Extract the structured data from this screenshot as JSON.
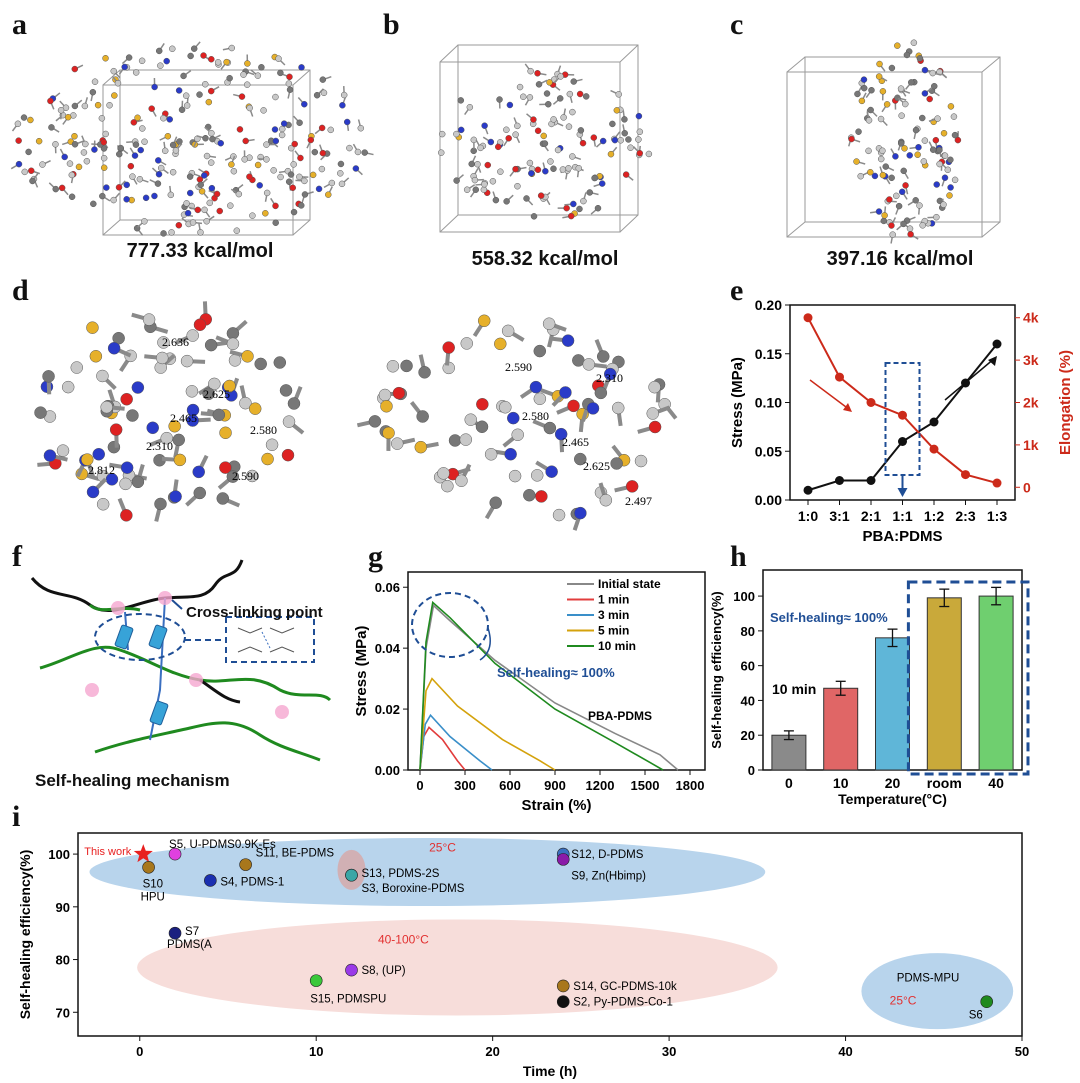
{
  "panel_letters": [
    "a",
    "b",
    "c",
    "d",
    "e",
    "f",
    "g",
    "h",
    "i"
  ],
  "a": {
    "energy": "777.33 kcal/mol"
  },
  "b": {
    "energy": "558.32 kcal/mol"
  },
  "c": {
    "energy": "397.16 kcal/mol"
  },
  "d": {
    "left_labels": [
      "2.636",
      "2.625",
      "2.465",
      "2.580",
      "2.310",
      "2.812",
      "2.590"
    ],
    "right_labels": [
      "2.590",
      "2.310",
      "2.580",
      "2.465",
      "2.625",
      "2.497"
    ]
  },
  "f": {
    "cross_linking": "Cross-linking point",
    "mechanism": "Self-healing mechanism"
  },
  "colors": {
    "black_series": "#111111",
    "red_series": "#cc2a1a",
    "blue_annot": "#1f4e95",
    "chain_green": "#1f8a1f",
    "ellipse_blue": "#8db8dc",
    "ellipse_pink": "#f3c6c2"
  },
  "chart_data": [
    {
      "panel": "e",
      "type": "line",
      "categories": [
        "1:0",
        "3:1",
        "2:1",
        "1:1",
        "1:2",
        "2:3",
        "1:3"
      ],
      "xlabel": "PBA:PDMS",
      "ylabel": "Stress (MPa)",
      "ylabel_right": "Elongation (%)",
      "ylim": [
        0,
        0.2
      ],
      "yticks": [
        "0.00",
        "0.05",
        "0.10",
        "0.15",
        "0.20"
      ],
      "ylim_right": [
        -300,
        4300
      ],
      "yticks_right": [
        "0",
        "1k",
        "2k",
        "3k",
        "4k"
      ],
      "series": [
        {
          "values": [
            0.01,
            0.02,
            0.02,
            0.06,
            0.08,
            0.12,
            0.16
          ],
          "axis": "left",
          "color": "#111111"
        },
        {
          "values": [
            4000,
            2600,
            2000,
            1700,
            900,
            300,
            100
          ],
          "axis": "right",
          "color": "#cc2a1a"
        }
      ]
    },
    {
      "panel": "g",
      "type": "line",
      "xlabel": "Strain (%)",
      "ylabel": "Stress (MPa)",
      "xlim": [
        -80,
        1900
      ],
      "ylim": [
        0,
        0.065
      ],
      "xticks": [
        0,
        300,
        600,
        900,
        1200,
        1500,
        1800
      ],
      "yticks": [
        "0.00",
        "0.02",
        "0.04",
        "0.06"
      ],
      "annotation": "Self-healing≈ 100%",
      "sample": "PBA-PDMS",
      "series": [
        {
          "name": "Initial state",
          "color": "#888888",
          "points": [
            [
              0,
              0
            ],
            [
              40,
              0.04
            ],
            [
              90,
              0.054
            ],
            [
              200,
              0.049
            ],
            [
              500,
              0.036
            ],
            [
              900,
              0.022
            ],
            [
              1300,
              0.012
            ],
            [
              1600,
              0.005
            ],
            [
              1720,
              0
            ]
          ]
        },
        {
          "name": "1 min",
          "color": "#e23c3c",
          "points": [
            [
              0,
              0
            ],
            [
              25,
              0.011
            ],
            [
              60,
              0.014
            ],
            [
              150,
              0.01
            ],
            [
              250,
              0.003
            ],
            [
              300,
              0
            ]
          ]
        },
        {
          "name": "3 min",
          "color": "#3a8fc9",
          "points": [
            [
              0,
              0
            ],
            [
              35,
              0.015
            ],
            [
              70,
              0.018
            ],
            [
              200,
              0.011
            ],
            [
              400,
              0.003
            ],
            [
              480,
              0
            ]
          ]
        },
        {
          "name": "5 min",
          "color": "#d4a20c",
          "points": [
            [
              0,
              0
            ],
            [
              40,
              0.026
            ],
            [
              80,
              0.03
            ],
            [
              250,
              0.021
            ],
            [
              550,
              0.01
            ],
            [
              800,
              0.003
            ],
            [
              900,
              0
            ]
          ]
        },
        {
          "name": "10 min",
          "color": "#1f8a1f",
          "points": [
            [
              0,
              0
            ],
            [
              40,
              0.042
            ],
            [
              85,
              0.055
            ],
            [
              200,
              0.05
            ],
            [
              500,
              0.035
            ],
            [
              900,
              0.02
            ],
            [
              1300,
              0.009
            ],
            [
              1550,
              0.002
            ],
            [
              1620,
              0
            ]
          ]
        }
      ]
    },
    {
      "panel": "h",
      "type": "bar",
      "categories": [
        "0",
        "10",
        "20",
        "room",
        "40"
      ],
      "values": [
        20,
        47,
        76,
        99,
        100
      ],
      "errors": [
        2.5,
        4,
        5,
        5,
        5
      ],
      "colors": [
        "#8a8a8a",
        "#e06666",
        "#5fb6d8",
        "#c9a93a",
        "#6fcf6f"
      ],
      "xlabel": "Temperature(°C)",
      "ylabel": "Self-healing efficiency(%)",
      "ylim": [
        0,
        115
      ],
      "yticks": [
        0,
        20,
        40,
        60,
        80,
        100
      ],
      "annotation_time": "10 min",
      "annotation": "Self-healing≈ 100%"
    },
    {
      "panel": "i",
      "type": "scatter",
      "xlabel": "Time (h)",
      "ylabel": "Self-healing efficiency(%)",
      "xlim": [
        -3.5,
        50
      ],
      "ylim": [
        65.5,
        104
      ],
      "xticks": [
        0,
        10,
        20,
        30,
        40,
        50
      ],
      "yticks": [
        70,
        80,
        90,
        100
      ],
      "regions": [
        "25°C",
        "40-100°C",
        "25°C"
      ],
      "this_work": "This work",
      "points": [
        {
          "label": "S5, U-PDMS0.9K-Es",
          "x": 2,
          "y": 100,
          "color": "#e040e0"
        },
        {
          "label": "S10",
          "sub": "HPU",
          "x": 0.5,
          "y": 97.5,
          "color": "#a8771c"
        },
        {
          "label": "S4, PDMS-1",
          "x": 4,
          "y": 95,
          "color": "#1a2fb0"
        },
        {
          "label": "S11, BE-PDMS",
          "x": 6,
          "y": 98,
          "color": "#a8771c"
        },
        {
          "label": "S13, PDMS-2S",
          "x": 12,
          "y": 96,
          "color": "#3aa6a6"
        },
        {
          "label": "S3, Boroxine-PDMS",
          "x": 12,
          "y": 96,
          "color": "#3aa6a6"
        },
        {
          "label": "S12, D-PDMS",
          "x": 24,
          "y": 100,
          "color": "#3a6fc0"
        },
        {
          "label": "S9, Zn(Hbimp)",
          "x": 24,
          "y": 99,
          "color": "#8a1aa8"
        },
        {
          "label": "S7",
          "sub": "PDMS(A",
          "x": 2,
          "y": 85,
          "color": "#1a2080"
        },
        {
          "label": "S8, (UP)",
          "x": 12,
          "y": 78,
          "color": "#9a3ae8"
        },
        {
          "label": "S15, PDMSPU",
          "x": 10,
          "y": 76,
          "color": "#3ac83a"
        },
        {
          "label": "S14, GC-PDMS-10k",
          "x": 24,
          "y": 75,
          "color": "#a8771c"
        },
        {
          "label": "S2, Py-PDMS-Co-1",
          "x": 24,
          "y": 72,
          "color": "#111111"
        },
        {
          "label": "S6",
          "sub": "PDMS-MPU",
          "x": 48,
          "y": 72,
          "color": "#1f8a1f"
        }
      ]
    }
  ]
}
